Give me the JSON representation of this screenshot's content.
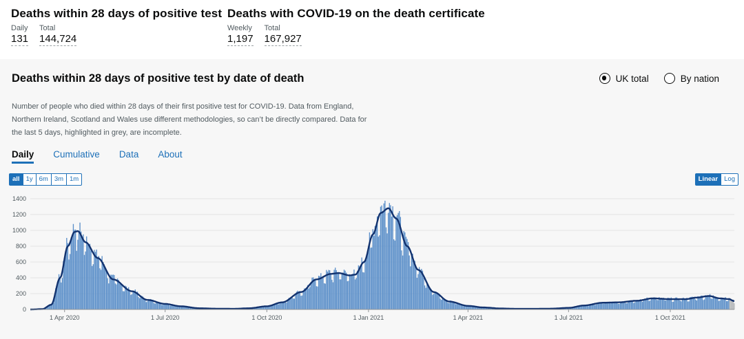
{
  "headlines": [
    {
      "title": "Deaths within 28 days of positive test",
      "metrics": [
        {
          "label": "Daily",
          "value": "131"
        },
        {
          "label": "Total",
          "value": "144,724"
        }
      ]
    },
    {
      "title": "Deaths with COVID-19 on the death certificate",
      "metrics": [
        {
          "label": "Weekly",
          "value": "1,197"
        },
        {
          "label": "Total",
          "value": "167,927"
        }
      ]
    }
  ],
  "card": {
    "title": "Deaths within 28 days of positive test by date of death",
    "description": "Number of people who died within 28 days of their first positive test for COVID-19. Data from England, Northern Ireland, Scotland and Wales use different methodologies, so can’t be directly compared. Data for the last 5 days, highlighted in grey, are incomplete.",
    "radio_options": [
      {
        "label": "UK total",
        "selected": true
      },
      {
        "label": "By nation",
        "selected": false
      }
    ],
    "tabs": [
      {
        "label": "Daily",
        "active": true
      },
      {
        "label": "Cumulative",
        "active": false
      },
      {
        "label": "Data",
        "active": false
      },
      {
        "label": "About",
        "active": false
      }
    ],
    "range_buttons": [
      {
        "label": "all",
        "active": true
      },
      {
        "label": "1y",
        "active": false
      },
      {
        "label": "6m",
        "active": false
      },
      {
        "label": "3m",
        "active": false
      },
      {
        "label": "1m",
        "active": false
      }
    ],
    "scale_buttons": [
      {
        "label": "Linear",
        "active": true
      },
      {
        "label": "Log",
        "active": false
      }
    ]
  },
  "colors": {
    "bar": "#5b8fc9",
    "line": "#12326e",
    "incomplete": "#b1b4b6",
    "accent": "#1d70b8",
    "grid": "#e3e3e3"
  },
  "chart_data": {
    "type": "bar",
    "x_start": "2020-03-01",
    "x_end": "2021-11-28",
    "ylim": [
      0,
      1400
    ],
    "y_ticks": [
      0,
      200,
      400,
      600,
      800,
      1000,
      1200,
      1400
    ],
    "x_ticks": [
      "1 Apr 2020",
      "1 Jul 2020",
      "1 Oct 2020",
      "1 Jan 2021",
      "1 Apr 2021",
      "1 Jul 2021",
      "1 Oct 2021"
    ],
    "incomplete_last_days": 5,
    "series_note": "Daily deaths (bars) with 7-day rolling average (line)",
    "daily_anchors": [
      [
        "2020-03-01",
        0
      ],
      [
        "2020-03-12",
        5
      ],
      [
        "2020-03-20",
        60
      ],
      [
        "2020-03-28",
        400
      ],
      [
        "2020-04-04",
        800
      ],
      [
        "2020-04-10",
        980
      ],
      [
        "2020-04-13",
        990
      ],
      [
        "2020-04-20",
        850
      ],
      [
        "2020-05-01",
        650
      ],
      [
        "2020-05-15",
        380
      ],
      [
        "2020-06-01",
        230
      ],
      [
        "2020-06-15",
        120
      ],
      [
        "2020-07-01",
        70
      ],
      [
        "2020-07-15",
        40
      ],
      [
        "2020-08-01",
        15
      ],
      [
        "2020-08-15",
        10
      ],
      [
        "2020-09-01",
        8
      ],
      [
        "2020-09-15",
        15
      ],
      [
        "2020-10-01",
        40
      ],
      [
        "2020-10-15",
        90
      ],
      [
        "2020-11-01",
        220
      ],
      [
        "2020-11-15",
        380
      ],
      [
        "2020-11-28",
        450
      ],
      [
        "2020-12-05",
        460
      ],
      [
        "2020-12-15",
        430
      ],
      [
        "2020-12-20",
        440
      ],
      [
        "2020-12-28",
        600
      ],
      [
        "2021-01-05",
        950
      ],
      [
        "2021-01-12",
        1220
      ],
      [
        "2021-01-19",
        1280
      ],
      [
        "2021-01-26",
        1150
      ],
      [
        "2021-02-05",
        800
      ],
      [
        "2021-02-15",
        500
      ],
      [
        "2021-03-01",
        220
      ],
      [
        "2021-03-15",
        100
      ],
      [
        "2021-04-01",
        45
      ],
      [
        "2021-04-15",
        25
      ],
      [
        "2021-05-01",
        12
      ],
      [
        "2021-05-15",
        8
      ],
      [
        "2021-06-01",
        8
      ],
      [
        "2021-06-15",
        10
      ],
      [
        "2021-07-01",
        20
      ],
      [
        "2021-07-15",
        50
      ],
      [
        "2021-08-01",
        85
      ],
      [
        "2021-08-15",
        90
      ],
      [
        "2021-09-01",
        110
      ],
      [
        "2021-09-15",
        140
      ],
      [
        "2021-10-01",
        130
      ],
      [
        "2021-10-15",
        130
      ],
      [
        "2021-10-25",
        150
      ],
      [
        "2021-11-05",
        170
      ],
      [
        "2021-11-15",
        140
      ],
      [
        "2021-11-23",
        131
      ],
      [
        "2021-11-28",
        105
      ]
    ]
  }
}
